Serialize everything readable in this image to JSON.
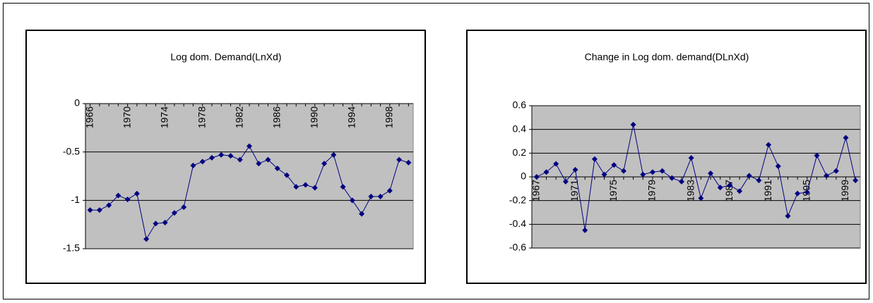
{
  "chart_data": [
    {
      "type": "line",
      "title": "Log dom. Demand(LnXd)",
      "categories": [
        "1966",
        null,
        null,
        null,
        "1970",
        null,
        null,
        null,
        "1974",
        null,
        null,
        null,
        "1978",
        null,
        null,
        null,
        "1982",
        null,
        null,
        null,
        "1986",
        null,
        null,
        null,
        "1990",
        null,
        null,
        null,
        "1994",
        null,
        null,
        null,
        "1998",
        null,
        null
      ],
      "series": [
        {
          "color": "#000080",
          "values": [
            -1.1,
            -1.1,
            -1.05,
            -0.95,
            -0.99,
            -0.93,
            -1.4,
            -1.24,
            -1.23,
            -1.13,
            -1.07,
            -0.64,
            -0.6,
            -0.56,
            -0.53,
            -0.54,
            -0.58,
            -0.44,
            -0.62,
            -0.58,
            -0.67,
            -0.74,
            -0.86,
            -0.84,
            -0.87,
            -0.62,
            -0.53,
            -0.86,
            -1.0,
            -1.14,
            -0.96,
            -0.96,
            -0.9,
            -0.58,
            -0.61
          ]
        }
      ],
      "ylim": [
        -1.5,
        0
      ],
      "yticks": [
        0,
        -0.5,
        -1,
        -1.5
      ],
      "grid": true
    },
    {
      "type": "line",
      "title": "Change in Log dom. demand(DLnXd)",
      "categories": [
        "1967",
        null,
        null,
        null,
        "1971",
        null,
        null,
        null,
        "1975",
        null,
        null,
        null,
        "1979",
        null,
        null,
        null,
        "1983",
        null,
        null,
        null,
        "1987",
        null,
        null,
        null,
        "1991",
        null,
        null,
        null,
        "1995",
        null,
        null,
        null,
        "1999",
        null
      ],
      "series": [
        {
          "color": "#000080",
          "values": [
            0.0,
            0.04,
            0.11,
            -0.04,
            0.06,
            -0.45,
            0.15,
            0.02,
            0.1,
            0.05,
            0.44,
            0.02,
            0.04,
            0.05,
            -0.01,
            -0.04,
            0.16,
            -0.18,
            0.03,
            -0.09,
            -0.07,
            -0.12,
            0.01,
            -0.03,
            0.27,
            0.09,
            -0.33,
            -0.14,
            -0.13,
            0.18,
            0.01,
            0.05,
            0.33,
            -0.03
          ]
        }
      ],
      "ylim": [
        -0.6,
        0.6
      ],
      "yticks": [
        0.6,
        0.4,
        0.2,
        0,
        -0.2,
        -0.4,
        -0.6
      ],
      "grid": true
    }
  ]
}
